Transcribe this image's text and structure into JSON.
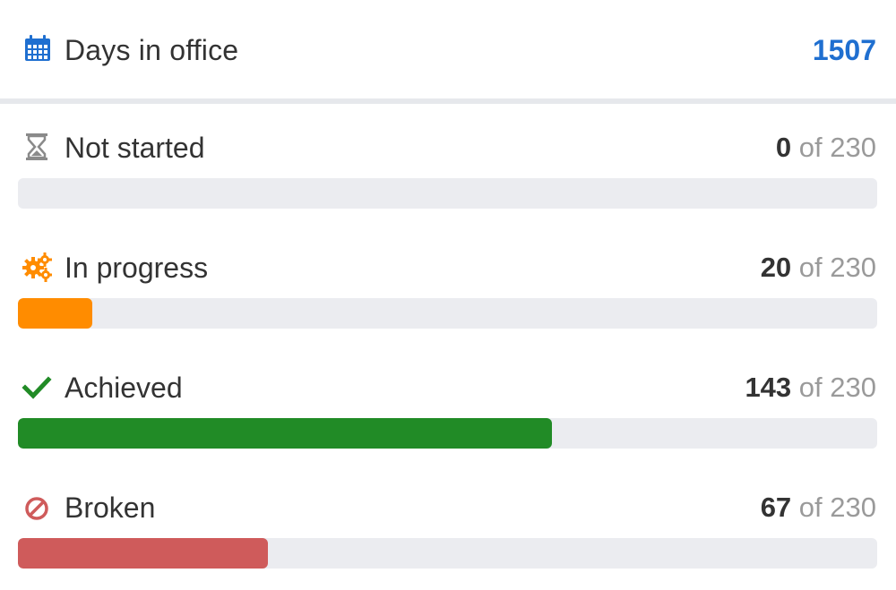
{
  "header": {
    "icon": "calendar-icon",
    "label": "Days in office",
    "value": "1507",
    "value_color": "#1f6fd0"
  },
  "total": 230,
  "stats": [
    {
      "icon": "hourglass-icon",
      "label": "Not started",
      "count": "0",
      "of_text": "of 230",
      "value": 0,
      "color": "#8a8a8a"
    },
    {
      "icon": "gears-icon",
      "label": "In progress",
      "count": "20",
      "of_text": "of 230",
      "value": 20,
      "color": "#ff8c00"
    },
    {
      "icon": "checkmark-icon",
      "label": "Achieved",
      "count": "143",
      "of_text": "of 230",
      "value": 143,
      "color": "#218b26"
    },
    {
      "icon": "prohibited-icon",
      "label": "Broken",
      "count": "67",
      "of_text": "of 230",
      "value": 67,
      "color": "#cf5b5b"
    }
  ]
}
